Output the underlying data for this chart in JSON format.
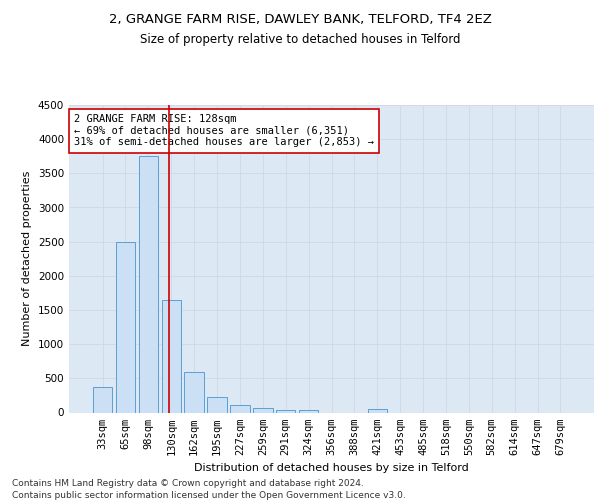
{
  "title1": "2, GRANGE FARM RISE, DAWLEY BANK, TELFORD, TF4 2EZ",
  "title2": "Size of property relative to detached houses in Telford",
  "xlabel": "Distribution of detached houses by size in Telford",
  "ylabel": "Number of detached properties",
  "categories": [
    "33sqm",
    "65sqm",
    "98sqm",
    "130sqm",
    "162sqm",
    "195sqm",
    "227sqm",
    "259sqm",
    "291sqm",
    "324sqm",
    "356sqm",
    "388sqm",
    "421sqm",
    "453sqm",
    "485sqm",
    "518sqm",
    "550sqm",
    "582sqm",
    "614sqm",
    "647sqm",
    "679sqm"
  ],
  "values": [
    375,
    2500,
    3750,
    1650,
    590,
    230,
    110,
    60,
    35,
    35,
    0,
    0,
    50,
    0,
    0,
    0,
    0,
    0,
    0,
    0,
    0
  ],
  "bar_color": "#cce0f5",
  "bar_edge_color": "#5a9fd4",
  "vline_pos": 2.9,
  "vline_color": "#cc0000",
  "annotation_text": "2 GRANGE FARM RISE: 128sqm\n← 69% of detached houses are smaller (6,351)\n31% of semi-detached houses are larger (2,853) →",
  "annotation_box_color": "#ffffff",
  "annotation_box_edge": "#cc0000",
  "ylim": [
    0,
    4500
  ],
  "yticks": [
    0,
    500,
    1000,
    1500,
    2000,
    2500,
    3000,
    3500,
    4000,
    4500
  ],
  "grid_color": "#d0d8e8",
  "bg_color": "#dde8f5",
  "footer": "Contains HM Land Registry data © Crown copyright and database right 2024.\nContains public sector information licensed under the Open Government Licence v3.0.",
  "title1_fontsize": 9.5,
  "title2_fontsize": 8.5,
  "xlabel_fontsize": 8,
  "ylabel_fontsize": 8,
  "tick_fontsize": 7.5,
  "annot_fontsize": 7.5,
  "footer_fontsize": 6.5
}
